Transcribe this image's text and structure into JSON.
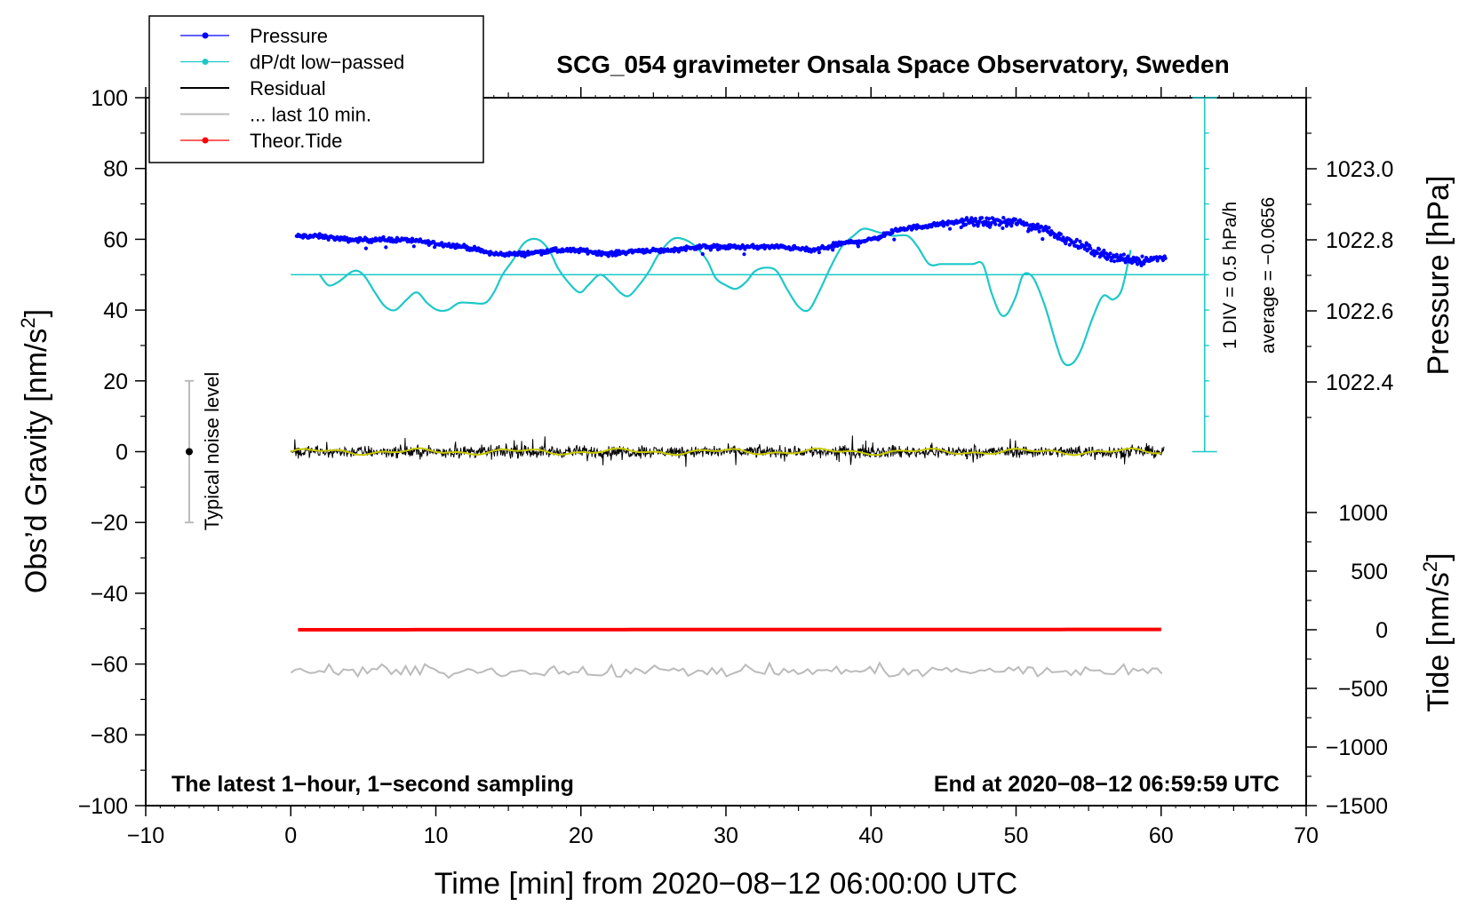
{
  "chart_data": {
    "type": "line",
    "title": "SCG_054 gravimeter Onsala Space Observatory, Sweden",
    "xlabel": "Time [min] from 2020−08−12 06:00:00 UTC",
    "xlim": [
      -10,
      70
    ],
    "x_ticks": [
      -10,
      0,
      10,
      20,
      30,
      40,
      50,
      60,
      70
    ],
    "x_tick_labels": [
      "−10",
      "0",
      "10",
      "20",
      "30",
      "40",
      "50",
      "60",
      "70"
    ],
    "left_axis": {
      "label_main": "Obs’d Gravity [nm/s",
      "label_sup": "2",
      "label_end": "]",
      "ylim": [
        -100,
        100
      ],
      "ticks": [
        -100,
        -80,
        -60,
        -40,
        -20,
        0,
        20,
        40,
        60,
        80,
        100
      ],
      "tick_labels": [
        "−100",
        "−80",
        "−60",
        "−40",
        "−20",
        "0",
        "20",
        "40",
        "60",
        "80",
        "100"
      ]
    },
    "pressure_axis": {
      "label": "Pressure [hPa]",
      "ticks": [
        1022.4,
        1022.6,
        1022.8,
        1023.0
      ],
      "tick_labels": [
        "1022.4",
        "1022.6",
        "1022.8",
        "1023.0"
      ],
      "range": [
        1022.2,
        1023.2
      ]
    },
    "tide_axis": {
      "label_main": "Tide [nm/s",
      "label_sup": "2",
      "label_end": "]",
      "ticks": [
        -1500,
        -1000,
        -500,
        0,
        500,
        1000
      ],
      "tick_labels": [
        "−1500",
        "−1000",
        "−500",
        "0",
        "500",
        "1000"
      ],
      "range": [
        -1500,
        1000
      ]
    },
    "legend": [
      {
        "label": "Pressure",
        "color": "#0000ff",
        "marker": true
      },
      {
        "label": "dP/dt low−passed",
        "color": "#1ec8c8",
        "marker": true
      },
      {
        "label": "Residual",
        "color": "#000000",
        "marker": false
      },
      {
        "label": "... last 10 min.",
        "color": "#bbbbbb",
        "marker": false
      },
      {
        "label": "Theor.Tide",
        "color": "#ff0000",
        "marker": true
      }
    ],
    "annotations": {
      "noise_label": "Typical noise level",
      "noise_range": [
        -20,
        20
      ],
      "div_label": "1 DIV = 0.5 hPa/h",
      "average_label": "average = −0.0656",
      "footer_left": "The latest 1−hour, 1−second sampling",
      "footer_right": "End at 2020−08−12 06:59:59 UTC"
    },
    "dpdt_scale": {
      "x": 63,
      "y_from": 0,
      "y_to": 100,
      "baseline": 50,
      "divisions": 10
    },
    "series": [
      {
        "name": "Pressure",
        "axis": "pressure",
        "color": "#0000ff",
        "x": [
          0.5,
          2,
          4,
          6,
          8,
          10,
          12,
          14,
          16,
          18,
          20,
          22,
          24,
          26,
          28,
          30,
          32,
          34,
          36,
          38,
          40,
          42,
          44,
          46,
          48,
          50,
          52,
          54,
          56,
          58,
          60
        ],
        "y": [
          1022.81,
          1022.81,
          1022.8,
          1022.8,
          1022.8,
          1022.79,
          1022.78,
          1022.76,
          1022.76,
          1022.77,
          1022.77,
          1022.76,
          1022.77,
          1022.77,
          1022.78,
          1022.78,
          1022.78,
          1022.78,
          1022.77,
          1022.79,
          1022.8,
          1022.83,
          1022.84,
          1022.85,
          1022.85,
          1022.85,
          1022.83,
          1022.79,
          1022.76,
          1022.74,
          1022.75
        ]
      },
      {
        "name": "dP/dt low-passed",
        "axis": "gravity",
        "color": "#1ec8c8",
        "x": [
          2,
          2.6,
          3.3,
          4.3,
          5.0,
          5.8,
          6.5,
          7.2,
          8.0,
          8.7,
          9.4,
          10.1,
          10.8,
          11.6,
          12.5,
          13.4,
          14.0,
          14.6,
          15.3,
          16.1,
          17.0,
          17.8,
          18.4,
          19.1,
          19.9,
          20.5,
          21.3,
          22.0,
          22.7,
          23.3,
          24.0,
          24.7,
          25.4,
          26.3,
          27.1,
          27.9,
          28.7,
          29.3,
          30.0,
          30.7,
          31.4,
          32.0,
          32.8,
          33.5,
          34.2,
          35.0,
          35.7,
          36.4,
          37.2,
          38.0,
          38.8,
          39.5,
          40.5,
          41.5,
          42.5,
          43.2,
          44.0,
          44.8,
          45.5,
          46.2,
          47.0,
          47.7,
          48.3,
          48.9,
          49.4,
          50.0,
          50.5,
          51.2,
          52.0,
          52.8,
          53.3,
          53.9,
          54.5,
          55.3,
          56.0,
          56.7,
          57.3,
          57.9
        ],
        "y": [
          50,
          47,
          48,
          51,
          50,
          45,
          41,
          40,
          43,
          45,
          42,
          40,
          40,
          42,
          42,
          42,
          45,
          50,
          54,
          59,
          60,
          57,
          52,
          48,
          45,
          47,
          50,
          48,
          45,
          44,
          47,
          51,
          56,
          60,
          60,
          58,
          54,
          49,
          47,
          46,
          48,
          51,
          52,
          51,
          46,
          41,
          40,
          45,
          52,
          58,
          61,
          63,
          62,
          61,
          61,
          58,
          53,
          53,
          53,
          53,
          53,
          53,
          45,
          39,
          39,
          44,
          50,
          49,
          41,
          30,
          25,
          25,
          29,
          38,
          44,
          43,
          46,
          57
        ]
      }
    ],
    "residual": {
      "color": "#000000",
      "smooth_color": "#c8c800",
      "center": 0,
      "amplitude": 2.5
    },
    "last_10_min": {
      "color": "#bbbbbb",
      "center": -62,
      "amplitude": 2.5
    },
    "theoretical_tide": {
      "color": "#ff0000",
      "x_range": [
        0.5,
        60.3
      ],
      "y_start": 0,
      "y_end": 3
    }
  }
}
